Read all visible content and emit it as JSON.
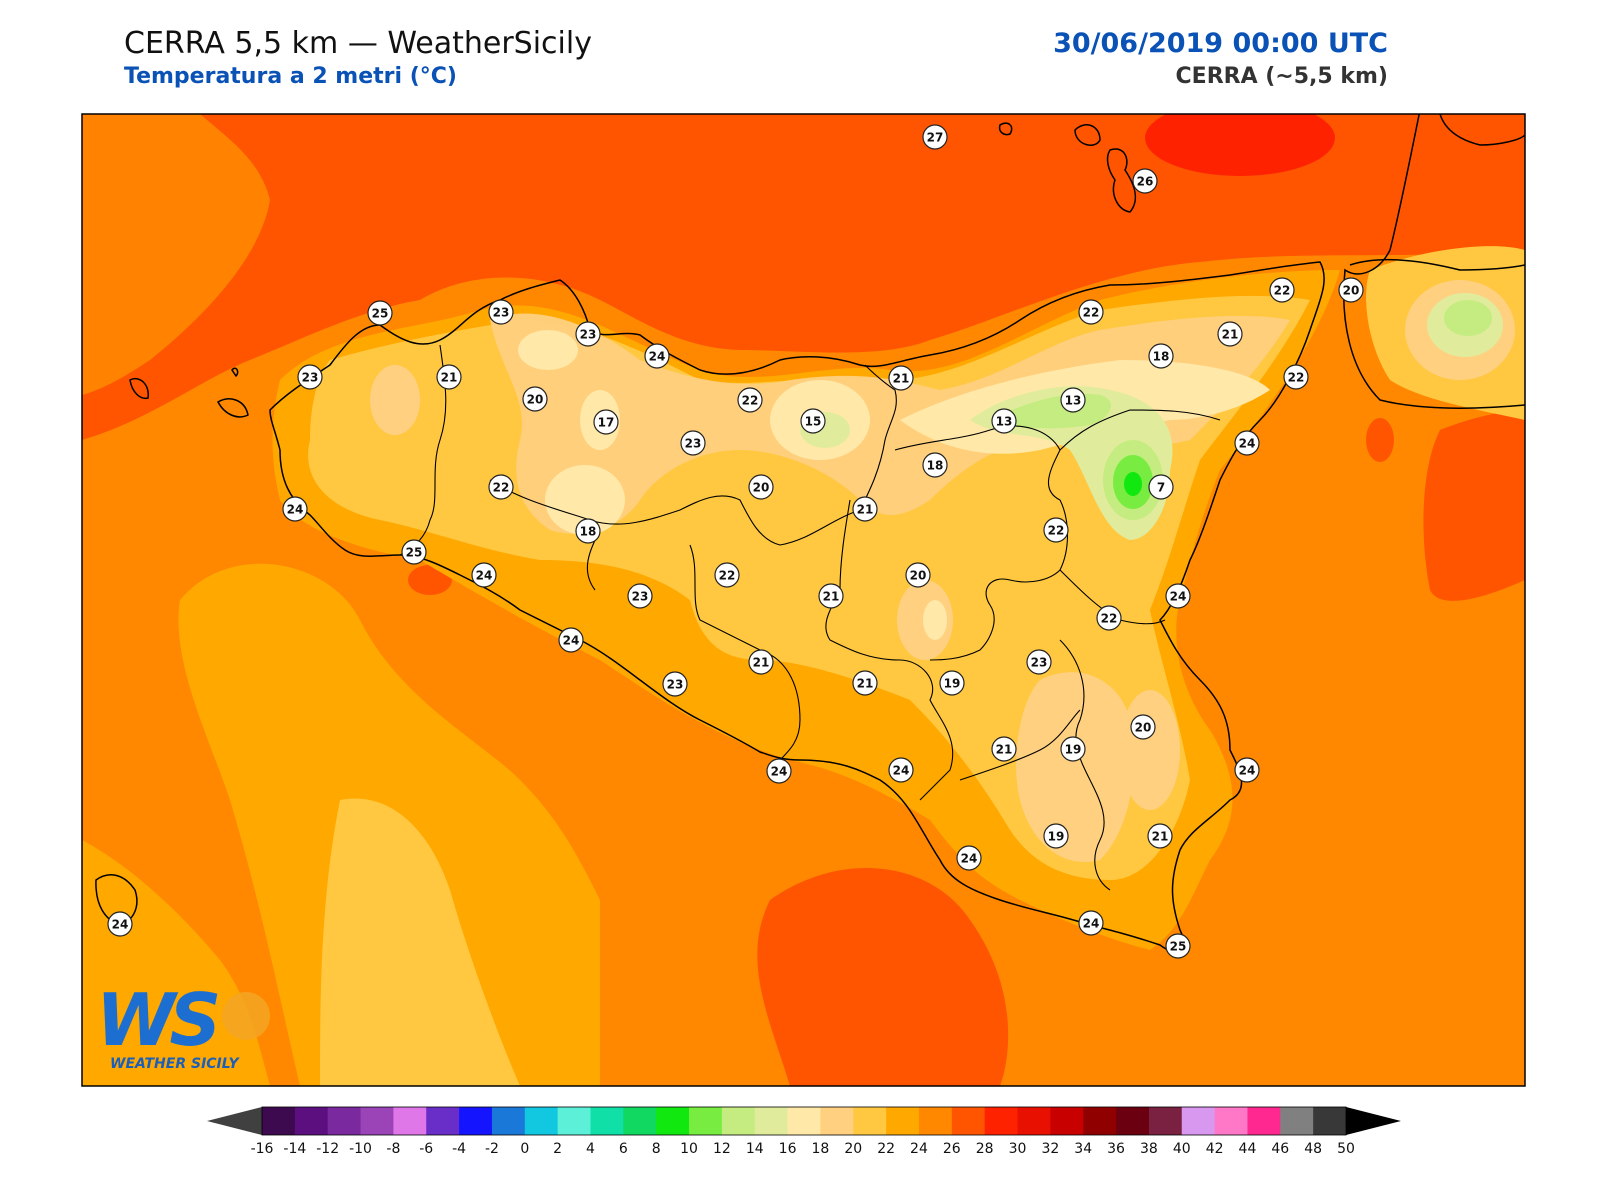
{
  "header": {
    "title": "CERRA 5,5 km — WeatherSicily",
    "subtitle": "Temperatura a 2 metri (°C)",
    "datetime": "30/06/2019 00:00 UTC",
    "model": "CERRA (~5,5 km)"
  },
  "logo": {
    "mark": "WS",
    "name": "WEATHER SICILY"
  },
  "colorbar": {
    "ticks": [
      "-16",
      "-14",
      "-12",
      "-10",
      "-8",
      "-6",
      "-4",
      "-2",
      "0",
      "2",
      "4",
      "6",
      "8",
      "10",
      "12",
      "14",
      "16",
      "18",
      "20",
      "22",
      "24",
      "26",
      "28",
      "30",
      "32",
      "34",
      "36",
      "38",
      "40",
      "42",
      "44",
      "46",
      "48",
      "50"
    ],
    "colors": [
      "#3d0a4f",
      "#5c1080",
      "#7a2a9e",
      "#9a44b8",
      "#e077e8",
      "#6a2ec8",
      "#1414ff",
      "#1a78d8",
      "#12c8e0",
      "#5cf0d8",
      "#10e0a8",
      "#10d860",
      "#10e810",
      "#78ec40",
      "#c4ec80",
      "#e0ec9c",
      "#ffe8a8",
      "#ffd080",
      "#ffc840",
      "#ffa800",
      "#ff8800",
      "#ff5500",
      "#ff2200",
      "#e81000",
      "#c80000",
      "#900000",
      "#6a0010",
      "#7a2040",
      "#d898f0",
      "#ff78c8",
      "#ff2890",
      "#808080",
      "#383838"
    ],
    "under_color": "#404040",
    "over_color": "#000000"
  },
  "stations": [
    {
      "value": "27"
    },
    {
      "value": "26"
    },
    {
      "value": "25"
    },
    {
      "value": "23"
    },
    {
      "value": "23"
    },
    {
      "value": "24"
    },
    {
      "value": "22"
    },
    {
      "value": "21"
    },
    {
      "value": "22"
    },
    {
      "value": "18"
    },
    {
      "value": "20"
    },
    {
      "value": "22"
    },
    {
      "value": "24"
    },
    {
      "value": "23"
    },
    {
      "value": "21"
    },
    {
      "value": "20"
    },
    {
      "value": "17"
    },
    {
      "value": "23"
    },
    {
      "value": "15"
    },
    {
      "value": "13"
    },
    {
      "value": "13"
    },
    {
      "value": "22"
    },
    {
      "value": "21"
    },
    {
      "value": "22"
    },
    {
      "value": "18"
    },
    {
      "value": "20"
    },
    {
      "value": "21"
    },
    {
      "value": "7"
    },
    {
      "value": "24"
    },
    {
      "value": "25"
    },
    {
      "value": "18"
    },
    {
      "value": "22"
    },
    {
      "value": "22"
    },
    {
      "value": "24"
    },
    {
      "value": "23"
    },
    {
      "value": "21"
    },
    {
      "value": "20"
    },
    {
      "value": "24"
    },
    {
      "value": "22"
    },
    {
      "value": "24"
    },
    {
      "value": "21"
    },
    {
      "value": "21"
    },
    {
      "value": "19"
    },
    {
      "value": "23"
    },
    {
      "value": "23"
    },
    {
      "value": "20"
    },
    {
      "value": "21"
    },
    {
      "value": "19"
    },
    {
      "value": "24"
    },
    {
      "value": "24"
    },
    {
      "value": "24"
    },
    {
      "value": "24"
    },
    {
      "value": "19"
    },
    {
      "value": "21"
    },
    {
      "value": "24"
    },
    {
      "value": "25"
    },
    {
      "value": "24"
    }
  ]
}
